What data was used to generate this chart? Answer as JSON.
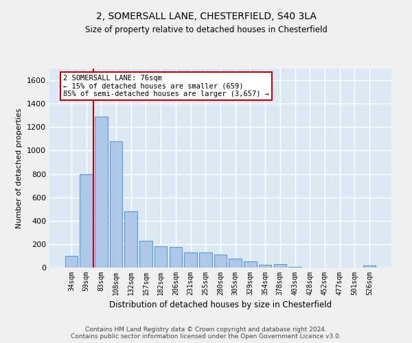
{
  "title": "2, SOMERSALL LANE, CHESTERFIELD, S40 3LA",
  "subtitle": "Size of property relative to detached houses in Chesterfield",
  "xlabel": "Distribution of detached houses by size in Chesterfield",
  "ylabel": "Number of detached properties",
  "bar_color": "#aec6e8",
  "bar_edge_color": "#5b9bd5",
  "background_color": "#dce9f5",
  "grid_color": "#ffffff",
  "fig_background": "#f0f0f0",
  "categories": [
    "34sqm",
    "59sqm",
    "83sqm",
    "108sqm",
    "132sqm",
    "157sqm",
    "182sqm",
    "206sqm",
    "231sqm",
    "255sqm",
    "280sqm",
    "305sqm",
    "329sqm",
    "354sqm",
    "378sqm",
    "403sqm",
    "428sqm",
    "452sqm",
    "477sqm",
    "501sqm",
    "526sqm"
  ],
  "values": [
    100,
    800,
    1290,
    1080,
    480,
    230,
    180,
    175,
    130,
    130,
    110,
    75,
    55,
    25,
    30,
    5,
    0,
    0,
    0,
    0,
    20
  ],
  "ylim": [
    0,
    1700
  ],
  "yticks": [
    0,
    200,
    400,
    600,
    800,
    1000,
    1200,
    1400,
    1600
  ],
  "vline_x": 1.5,
  "vline_color": "#cc0000",
  "annotation_line1": "2 SOMERSALL LANE: 76sqm",
  "annotation_line2": "← 15% of detached houses are smaller (659)",
  "annotation_line3": "85% of semi-detached houses are larger (3,657) →",
  "annotation_box_color": "#ffffff",
  "annotation_box_edge": "#cc0000",
  "footer_line1": "Contains HM Land Registry data © Crown copyright and database right 2024.",
  "footer_line2": "Contains public sector information licensed under the Open Government Licence v3.0."
}
